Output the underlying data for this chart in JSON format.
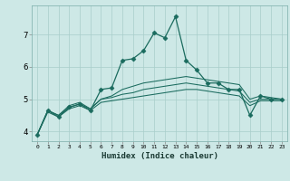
{
  "xlabel": "Humidex (Indice chaleur)",
  "bg_color": "#cde8e6",
  "grid_color": "#a8ceca",
  "line_color": "#1a6b5e",
  "x_min": -0.5,
  "x_max": 23.5,
  "y_min": 3.7,
  "y_max": 7.9,
  "yticks": [
    4,
    5,
    6,
    7
  ],
  "xticks": [
    0,
    1,
    2,
    3,
    4,
    5,
    6,
    7,
    8,
    9,
    10,
    11,
    12,
    13,
    14,
    15,
    16,
    17,
    18,
    19,
    20,
    21,
    22,
    23
  ],
  "series": [
    [
      3.9,
      4.65,
      4.45,
      4.75,
      4.85,
      4.65,
      5.3,
      5.35,
      6.2,
      6.25,
      6.5,
      7.05,
      6.9,
      7.55,
      6.2,
      5.9,
      5.5,
      5.5,
      5.3,
      5.3,
      4.5,
      5.1,
      5.0,
      5.0
    ],
    [
      3.9,
      4.65,
      4.5,
      4.8,
      4.9,
      4.7,
      5.0,
      5.1,
      5.3,
      5.4,
      5.5,
      5.55,
      5.6,
      5.65,
      5.7,
      5.65,
      5.6,
      5.55,
      5.5,
      5.45,
      5.0,
      5.1,
      5.05,
      5.0
    ],
    [
      3.9,
      4.65,
      4.5,
      4.75,
      4.85,
      4.7,
      5.0,
      5.05,
      5.15,
      5.2,
      5.3,
      5.35,
      5.4,
      5.45,
      5.5,
      5.45,
      5.4,
      5.35,
      5.3,
      5.25,
      4.9,
      5.0,
      5.0,
      5.0
    ],
    [
      3.9,
      4.6,
      4.45,
      4.7,
      4.8,
      4.65,
      4.9,
      4.95,
      5.0,
      5.05,
      5.1,
      5.15,
      5.2,
      5.25,
      5.3,
      5.3,
      5.25,
      5.2,
      5.15,
      5.1,
      4.8,
      4.95,
      4.95,
      4.95
    ]
  ]
}
